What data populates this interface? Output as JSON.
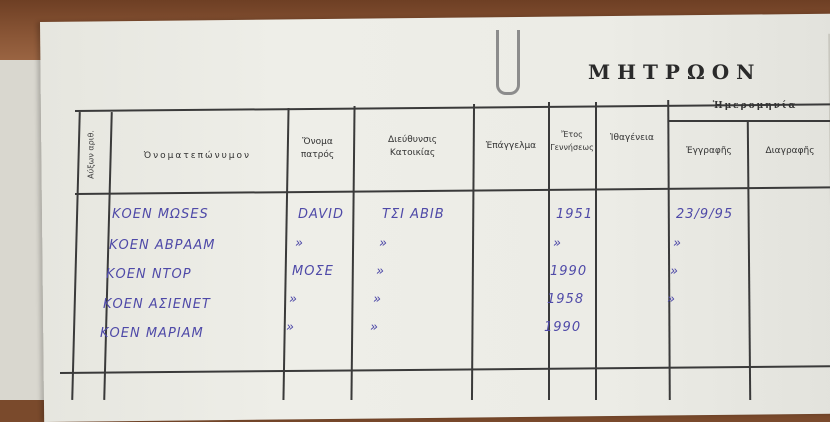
{
  "register_title": "ΜΗΤΡΩΟΝ",
  "headers": {
    "serial_no": "Αύξων αριθ.",
    "full_name": "Ὀνοματεπώνυμον",
    "father_name": "Ὄνομα πατρός",
    "address": "Διεύθυνσις Κατοικίας",
    "occupation": "Ἐπάγγελμα",
    "birth_year": "Ἔτος Γεννήσεως",
    "nationality": "Ἰθαγένεια",
    "date_group": "Ἡμερομηνία",
    "registration": "Ἐγγραφῆς",
    "deletion": "Διαγραφῆς"
  },
  "rows": [
    {
      "name": "ΚΟΕΝ ΜΩSES",
      "father": "DAVID",
      "address": "ΤΣΙ ΑΒΙΒ",
      "year": "1951",
      "registration": "23/9/95"
    },
    {
      "name": "ΚΟΕΝ ΑΒΡΑΑΜ",
      "father": "»",
      "address": "»",
      "year": "»",
      "registration": "»"
    },
    {
      "name": "ΚΟΕΝ ΝΤΟΡ",
      "father": "ΜΟΣΕ",
      "address": "»",
      "year": "1990",
      "registration": "»"
    },
    {
      "name": "ΚΟΕΝ ΑΣΙΕΝΕΤ",
      "father": "»",
      "address": "»",
      "year": "1958",
      "registration": "»"
    },
    {
      "name": "ΚΟΕΝ ΜΑΡΙΑΜ",
      "father": "»",
      "address": "»",
      "year": "1990",
      "registration": ""
    }
  ],
  "colors": {
    "ink": "#4f4aa8",
    "paper": "#ececE6",
    "wood": "#8a5636"
  }
}
